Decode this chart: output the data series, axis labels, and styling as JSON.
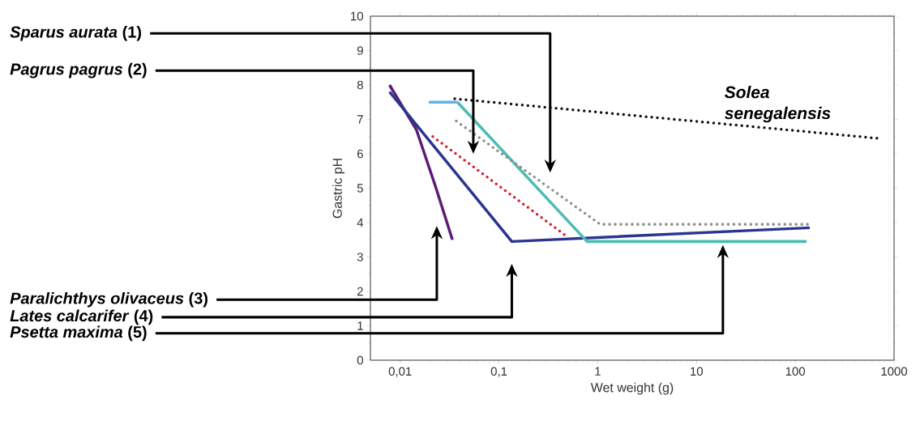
{
  "chart_data": {
    "type": "line",
    "xlabel": "Wet weight (g)",
    "ylabel": "Gastric pH",
    "log": "x",
    "xlim": [
      0.005,
      1000
    ],
    "ylim": [
      0,
      10
    ],
    "xticks": [
      {
        "value": 0.01,
        "label": "0,01"
      },
      {
        "value": 0.1,
        "label": "0,1"
      },
      1,
      10,
      100,
      1000
    ],
    "yticks": [
      0,
      1,
      2,
      3,
      4,
      5,
      6,
      7,
      8,
      9,
      10
    ],
    "series": [
      {
        "color": "#5a1e78",
        "x": [
          0.0078,
          0.0146,
          0.0231,
          0.0338
        ],
        "values": [
          8.0,
          6.7,
          5.0,
          3.5
        ],
        "line_style": "solid"
      },
      {
        "color": "#2a3592",
        "x": [
          0.0078,
          0.135,
          140
        ],
        "values": [
          7.8,
          3.45,
          3.85
        ],
        "line_style": "solid"
      },
      {
        "color": "#5fb4e6",
        "x": [
          0.0195,
          0.038
        ],
        "values": [
          7.5,
          7.5
        ],
        "line_style": "solid"
      },
      {
        "color": "#4dbdb3",
        "x": [
          0.038,
          0.78,
          130
        ],
        "values": [
          7.5,
          3.45,
          3.45
        ],
        "line_style": "solid"
      },
      {
        "color": "#d21f2a",
        "x": [
          0.0214,
          0.485
        ],
        "values": [
          6.5,
          3.6
        ],
        "line_style": "dotted"
      },
      {
        "color": "#8c8c8c",
        "x": [
          0.037,
          1.06,
          140
        ],
        "values": [
          6.95,
          3.95,
          3.95
        ],
        "line_style": "dotted"
      },
      {
        "name": "Solea senegalensis",
        "color": "#111111",
        "x": [
          0.0357,
          676
        ],
        "values": [
          7.6,
          6.45
        ],
        "line_style": "dotted"
      }
    ],
    "annotations": [
      "*Sparus aurata* (1)",
      "*Pagrus pagrus* (2)",
      "*Paralichthys olivaceus* (3)",
      "*Lates calcarifer* (4)",
      "*Psetta maxima* (5)"
    ]
  }
}
